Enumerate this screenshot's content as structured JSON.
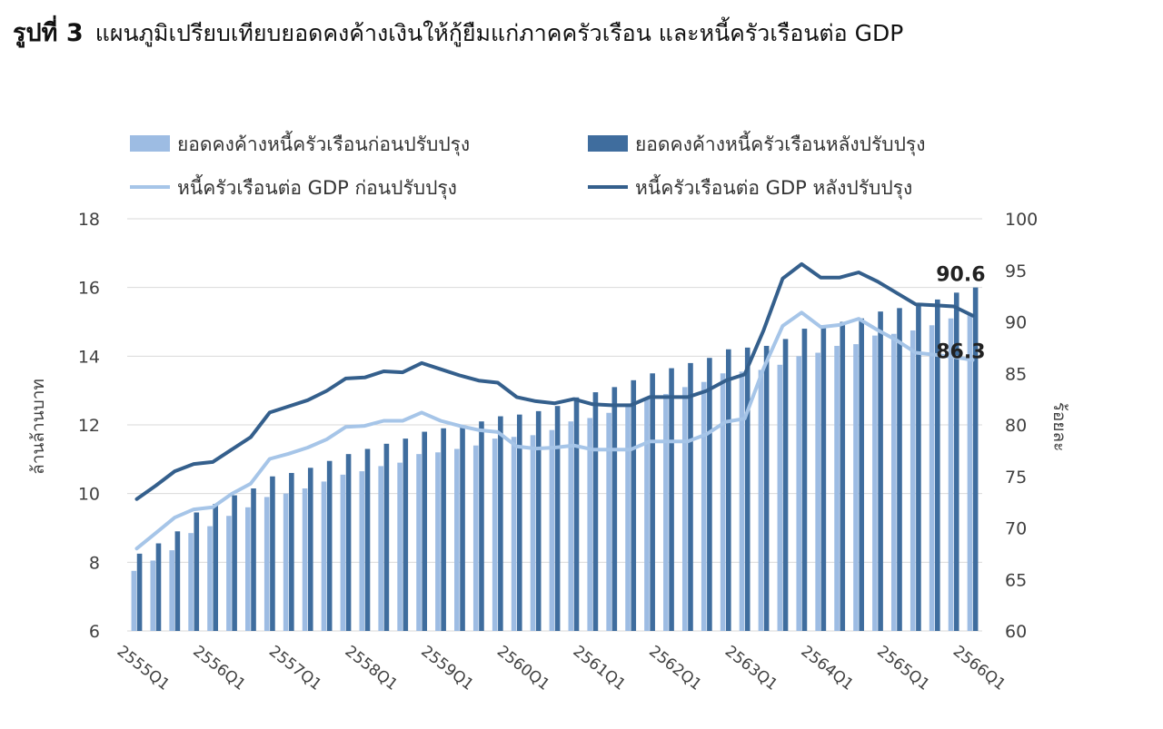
{
  "figure": {
    "number_label": "รูปที่ 3",
    "title": "แผนภูมิเปรียบเทียบยอดคงค้างเงินให้กู้ยืมแก่ภาคครัวเรือน และหนี้ครัวเรือนต่อ GDP"
  },
  "colors": {
    "bar_before": "#9dbce3",
    "bar_after": "#3f6d9e",
    "line_before": "#a6c5e8",
    "line_after": "#345f8c",
    "grid": "#d9d9d9",
    "text": "#404040"
  },
  "chart_data": {
    "type": "bar",
    "title": "",
    "ylabel_left": "ล้านล้านบาท",
    "ylabel_right": "ร้อยละ",
    "ylim_left": [
      6,
      18
    ],
    "ylim_right": [
      60,
      100
    ],
    "yticks_left": [
      "6",
      "8",
      "10",
      "12",
      "14",
      "16",
      "18"
    ],
    "yticks_right": [
      "60",
      "65",
      "70",
      "75",
      "80",
      "85",
      "90",
      "95",
      "100"
    ],
    "grid": true,
    "legend_position": "top",
    "xtick_labels": [
      "2555Q1",
      "2556Q1",
      "2557Q1",
      "2558Q1",
      "2559Q1",
      "2560Q1",
      "2561Q1",
      "2562Q1",
      "2563Q1",
      "2564Q1",
      "2565Q1",
      "2566Q1"
    ],
    "series": [
      {
        "name": "ยอดคงค้างหนี้ครัวเรือนก่อนปรับปรุง",
        "kind": "bar",
        "axis": "left",
        "values": [
          7.75,
          8.05,
          8.35,
          8.85,
          9.05,
          9.35,
          9.6,
          9.9,
          10.0,
          10.15,
          10.35,
          10.55,
          10.65,
          10.8,
          10.9,
          11.15,
          11.2,
          11.3,
          11.4,
          11.6,
          11.65,
          11.7,
          11.85,
          12.1,
          12.2,
          12.35,
          12.55,
          12.75,
          12.9,
          13.1,
          13.25,
          13.5,
          13.55,
          13.6,
          13.75,
          14.0,
          14.1,
          14.3,
          14.35,
          14.6,
          14.65,
          14.75,
          14.9,
          15.1,
          15.2
        ]
      },
      {
        "name": "ยอดคงค้างหนี้ครัวเรือนหลังปรับปรุง",
        "kind": "bar",
        "axis": "left",
        "values": [
          8.25,
          8.55,
          8.9,
          9.45,
          9.7,
          9.95,
          10.15,
          10.5,
          10.6,
          10.75,
          10.95,
          11.15,
          11.3,
          11.45,
          11.6,
          11.8,
          11.9,
          11.95,
          12.1,
          12.25,
          12.3,
          12.4,
          12.55,
          12.8,
          12.95,
          13.1,
          13.3,
          13.5,
          13.65,
          13.8,
          13.95,
          14.2,
          14.25,
          14.3,
          14.5,
          14.8,
          14.9,
          15.0,
          15.1,
          15.3,
          15.4,
          15.5,
          15.65,
          15.85,
          16.0
        ]
      },
      {
        "name": "หนี้ครัวเรือนต่อ GDP ก่อนปรับปรุง",
        "kind": "line",
        "axis": "right",
        "values": [
          68.0,
          69.5,
          71.0,
          71.8,
          72.0,
          73.3,
          74.3,
          76.7,
          77.2,
          77.8,
          78.6,
          79.8,
          79.9,
          80.4,
          80.4,
          81.2,
          80.4,
          79.9,
          79.5,
          79.3,
          77.9,
          77.7,
          77.8,
          78.0,
          77.6,
          77.6,
          77.6,
          78.4,
          78.4,
          78.4,
          79.1,
          80.3,
          80.6,
          85.5,
          89.6,
          90.9,
          89.5,
          89.7,
          90.3,
          89.2,
          88.2,
          87.0,
          86.8,
          86.6,
          86.3
        ]
      },
      {
        "name": "หนี้ครัวเรือนต่อ GDP หลังปรับปรุง",
        "kind": "line",
        "axis": "right",
        "values": [
          72.8,
          74.1,
          75.5,
          76.2,
          76.4,
          77.6,
          78.8,
          81.2,
          81.8,
          82.4,
          83.3,
          84.5,
          84.6,
          85.2,
          85.1,
          86.0,
          85.4,
          84.8,
          84.3,
          84.1,
          82.7,
          82.3,
          82.1,
          82.5,
          82.0,
          81.9,
          81.9,
          82.7,
          82.7,
          82.7,
          83.3,
          84.3,
          84.9,
          89.2,
          94.2,
          95.6,
          94.3,
          94.3,
          94.8,
          93.9,
          92.8,
          91.7,
          91.6,
          91.5,
          90.6
        ]
      }
    ],
    "annotations": [
      {
        "label": "90.6",
        "series_index": 3,
        "point_index": 44
      },
      {
        "label": "86.3",
        "series_index": 2,
        "point_index": 44
      }
    ]
  }
}
